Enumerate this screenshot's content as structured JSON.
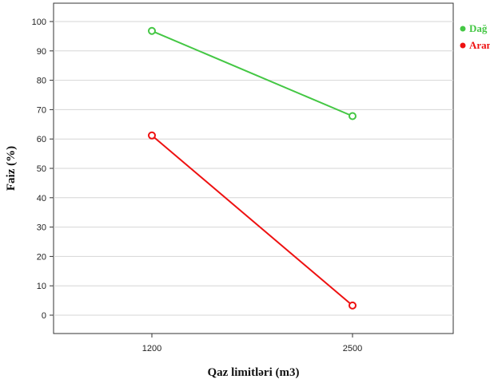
{
  "chart_data": {
    "type": "line",
    "x": [
      1200,
      2500
    ],
    "series": [
      {
        "name": "Dağ",
        "color": "#44c744",
        "values": [
          96.8,
          67.8
        ]
      },
      {
        "name": "Aran",
        "color": "#ee1111",
        "values": [
          61.2,
          3.3
        ]
      }
    ],
    "xlabel": "Qaz limitləri (m3)",
    "ylabel": "Faiz (%)",
    "x_ticks": [
      "1200",
      "2500"
    ],
    "y_ticks": [
      "0",
      "10",
      "20",
      "30",
      "40",
      "50",
      "60",
      "70",
      "80",
      "90",
      "100"
    ],
    "ylim": [
      0,
      100
    ],
    "grid": true,
    "legend_position": "top-right"
  }
}
